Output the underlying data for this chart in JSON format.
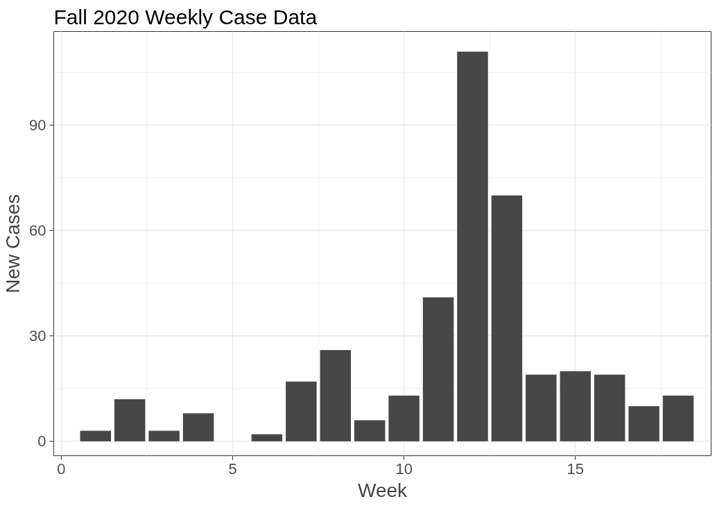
{
  "chart_data": {
    "type": "bar",
    "title": "Fall 2020 Weekly Case Data",
    "xlabel": "Week",
    "ylabel": "New Cases",
    "x": [
      1,
      2,
      3,
      4,
      5,
      6,
      7,
      8,
      9,
      10,
      11,
      12,
      13,
      14,
      15,
      16,
      17,
      18
    ],
    "values": [
      3,
      12,
      3,
      8,
      0,
      2,
      17,
      26,
      6,
      13,
      41,
      111,
      70,
      19,
      20,
      19,
      10,
      13
    ],
    "color": "#474747",
    "xlim": [
      -0.22,
      18.96
    ],
    "ylim": [
      -4.1,
      116.7
    ],
    "xticks": [
      0,
      5,
      10,
      15
    ],
    "yticks": [
      0,
      30,
      60,
      90
    ],
    "grid": true
  }
}
